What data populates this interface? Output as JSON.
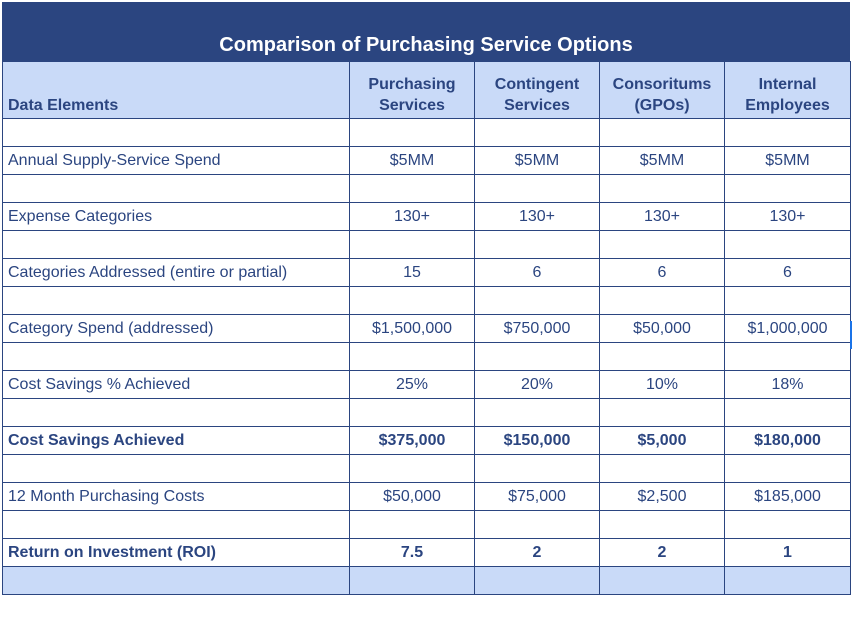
{
  "title": "Comparison of Purchasing Service Options",
  "headers": [
    "Data Elements",
    "Purchasing Services",
    "Contingent Services",
    "Consoritums (GPOs)",
    "Internal Employees"
  ],
  "rows": [
    {
      "label": "Annual Supply-Service Spend",
      "values": [
        "$5MM",
        "$5MM",
        "$5MM",
        "$5MM"
      ],
      "bold": false
    },
    {
      "label": "Expense Categories",
      "values": [
        "130+",
        "130+",
        "130+",
        "130+"
      ],
      "bold": false
    },
    {
      "label": "Categories Addressed (entire or partial)",
      "values": [
        "15",
        "6",
        "6",
        "6"
      ],
      "bold": false
    },
    {
      "label": "Category Spend (addressed)",
      "values": [
        "$1,500,000",
        "$750,000",
        "$50,000",
        "$1,000,000"
      ],
      "bold": false
    },
    {
      "label": "Cost Savings % Achieved",
      "values": [
        "25%",
        "20%",
        "10%",
        "18%"
      ],
      "bold": false
    },
    {
      "label": "Cost Savings Achieved",
      "values": [
        "$375,000",
        "$150,000",
        "$5,000",
        "$180,000"
      ],
      "bold": true
    },
    {
      "label": "12 Month Purchasing Costs",
      "values": [
        "$50,000",
        "$75,000",
        "$2,500",
        "$185,000"
      ],
      "bold": false
    },
    {
      "label": "Return on Investment (ROI)",
      "values": [
        "7.5",
        "2",
        "2",
        "1"
      ],
      "bold": true
    }
  ],
  "colors": {
    "title_bg": "#2b4580",
    "header_bg": "#c9daf8",
    "text": "#2b4580"
  }
}
